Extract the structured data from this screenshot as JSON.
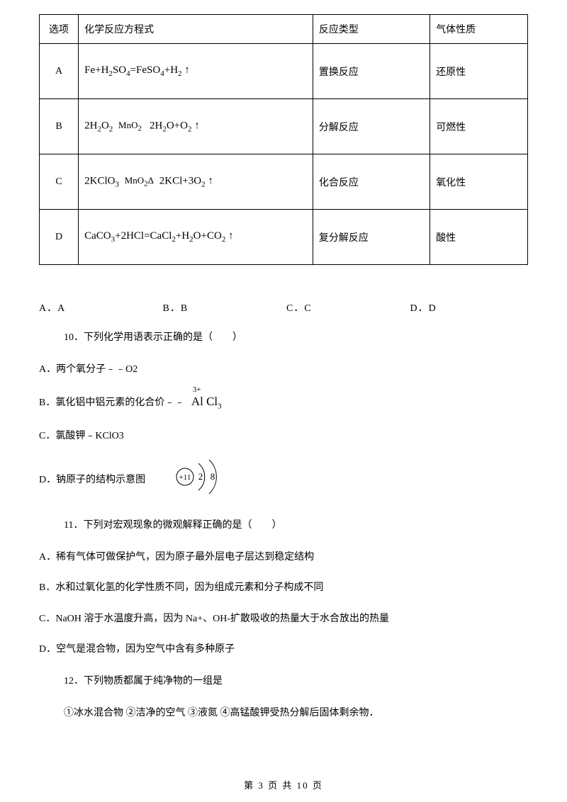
{
  "table": {
    "header": {
      "c1": "选项",
      "c2": "化学反应方程式",
      "c3": "反应类型",
      "c4": "气体性质"
    },
    "rows": [
      {
        "opt": "A",
        "eq_html": "Fe+H<sub>2</sub>SO<sub>4</sub>=FeSO<sub>4</sub>+H<sub>2</sub> <span class='up-arrow'>↑</span>",
        "type": "置换反应",
        "prop": "还原性"
      },
      {
        "opt": "B",
        "eq_html": "2H<sub>2</sub>O<sub>2</sub> <span class='catalyst'><span class='top-label'>MnO<sub>2</sub></span><span class='eq-line'></span><span class='bot-label'>&nbsp;</span></span> 2H<sub>2</sub>O+O<sub>2</sub> <span class='up-arrow'>↑</span>",
        "type": "分解反应",
        "prop": "可燃性"
      },
      {
        "opt": "C",
        "eq_html": "2KClO<sub>3</sub> <span class='catalyst'><span class='top-label'>MnO<sub>2</sub></span><span class='eq-line'></span><span class='bot-label'>Δ</span></span> 2KCl+3O<sub>2</sub> <span class='up-arrow'>↑</span>",
        "type": "化合反应",
        "prop": "氧化性"
      },
      {
        "opt": "D",
        "eq_html": "CaCO<sub>3</sub>+2HCl=CaCl<sub>2</sub>+H<sub>2</sub>O+CO<sub>2</sub> <span class='up-arrow'>↑</span>",
        "type": "复分解反应",
        "prop": "酸性"
      }
    ]
  },
  "abcd": {
    "a": "A．A",
    "b": "B．B",
    "c": "C．C",
    "d": "D．D"
  },
  "q10": {
    "stem": "10．下列化学用语表示正确的是（　　）",
    "a": "A．两个氧分子﹣﹣O2",
    "b_prefix": "B．氯化铝中铝元素的化合价﹣﹣",
    "b_formula_charge": "3+",
    "b_formula_main": "Al Cl",
    "b_formula_sub": "3",
    "c": "C．氯酸钾﹣KClO3",
    "d": "D．钠原子的结构示意图",
    "atom": {
      "core": "+11",
      "shell1": "2",
      "shell2": "8"
    }
  },
  "q11": {
    "stem": "11．下列对宏观现象的微观解释正确的是（　　）",
    "a": "A．稀有气体可做保护气，因为原子最外层电子层达到稳定结构",
    "b": "B．水和过氧化氢的化学性质不同，因为组成元素和分子构成不同",
    "c": "C．NaOH 溶于水温度升高，因为 Na+、OH-扩散吸收的热量大于水合放出的热量",
    "d": "D．空气是混合物，因为空气中含有多种原子"
  },
  "q12": {
    "stem": "12．下列物质都属于纯净物的一组是",
    "line": "①冰水混合物 ②洁净的空气 ③液氮 ④高锰酸钾受热分解后固体剩余物．"
  },
  "footer": "第 3 页 共 10 页",
  "colors": {
    "text": "#000000",
    "bg": "#ffffff",
    "border": "#000000"
  }
}
